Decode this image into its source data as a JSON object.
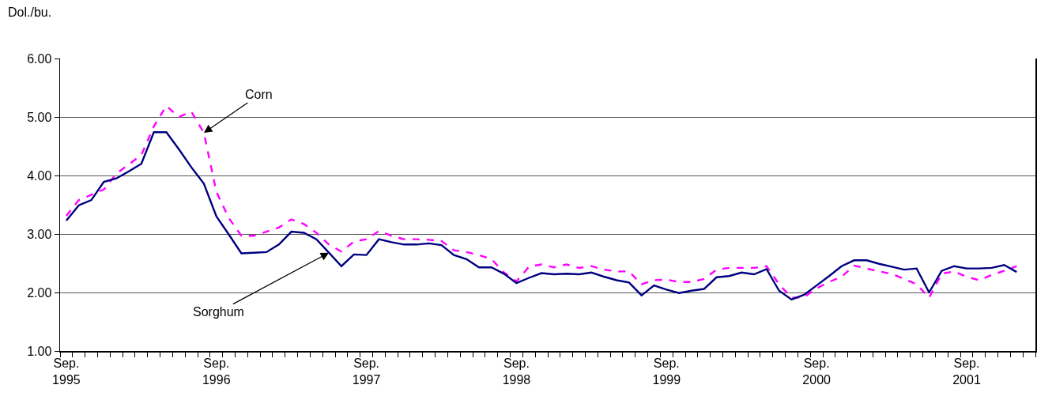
{
  "chart_data": {
    "type": "line",
    "ylabel": "Dol./bu.",
    "categories": [
      "Sep.\n1995",
      null,
      null,
      null,
      null,
      null,
      null,
      null,
      null,
      null,
      null,
      null,
      "Sep.\n1996",
      null,
      null,
      null,
      null,
      null,
      null,
      null,
      null,
      null,
      null,
      null,
      "Sep.\n1997",
      null,
      null,
      null,
      null,
      null,
      null,
      null,
      null,
      null,
      null,
      null,
      "Sep.\n1998",
      null,
      null,
      null,
      null,
      null,
      null,
      null,
      null,
      null,
      null,
      null,
      "Sep.\n1999",
      null,
      null,
      null,
      null,
      null,
      null,
      null,
      null,
      null,
      null,
      null,
      "Sep.\n2000",
      null,
      null,
      null,
      null,
      null,
      null,
      null,
      null,
      null,
      null,
      null,
      "Sep.\n2001",
      null,
      null,
      null,
      null,
      null
    ],
    "series": [
      {
        "name": "Corn",
        "color": "#ff00ff",
        "line_style": "dashed",
        "values": [
          3.31,
          3.58,
          3.67,
          3.76,
          4.03,
          4.19,
          4.35,
          4.84,
          5.19,
          5.0,
          5.09,
          4.73,
          3.72,
          3.27,
          2.97,
          2.97,
          3.04,
          3.11,
          3.25,
          3.17,
          3.02,
          2.82,
          2.7,
          2.87,
          2.91,
          3.05,
          2.97,
          2.91,
          2.91,
          2.9,
          2.88,
          2.72,
          2.69,
          2.64,
          2.57,
          2.34,
          2.19,
          2.44,
          2.48,
          2.43,
          2.48,
          2.42,
          2.45,
          2.39,
          2.36,
          2.36,
          2.14,
          2.21,
          2.22,
          2.18,
          2.18,
          2.23,
          2.39,
          2.42,
          2.42,
          2.42,
          2.45,
          2.14,
          1.91,
          1.92,
          2.07,
          2.18,
          2.27,
          2.46,
          2.41,
          2.36,
          2.32,
          2.23,
          2.14,
          1.91,
          2.32,
          2.36,
          2.27,
          2.21,
          2.3,
          2.37,
          2.45,
          null
        ]
      },
      {
        "name": "Sorghum",
        "color": "#000080",
        "line_style": "solid",
        "values": [
          3.23,
          3.49,
          3.58,
          3.89,
          3.95,
          4.07,
          4.2,
          4.74,
          4.74,
          4.45,
          4.14,
          3.86,
          3.3,
          2.99,
          2.67,
          2.68,
          2.69,
          2.82,
          3.04,
          3.02,
          2.91,
          2.68,
          2.45,
          2.65,
          2.64,
          2.91,
          2.86,
          2.82,
          2.82,
          2.84,
          2.81,
          2.64,
          2.57,
          2.43,
          2.43,
          2.32,
          2.16,
          2.25,
          2.33,
          2.31,
          2.32,
          2.31,
          2.34,
          2.27,
          2.21,
          2.17,
          1.95,
          2.12,
          2.05,
          1.99,
          2.03,
          2.06,
          2.26,
          2.28,
          2.34,
          2.31,
          2.4,
          2.03,
          1.88,
          1.96,
          2.12,
          2.28,
          2.45,
          2.55,
          2.55,
          2.49,
          2.44,
          2.39,
          2.41,
          2.0,
          2.37,
          2.45,
          2.41,
          2.41,
          2.42,
          2.47,
          2.35,
          null
        ]
      }
    ],
    "ylim": [
      1,
      6
    ],
    "yticks": [
      {
        "value": 1,
        "label": "1.00"
      },
      {
        "value": 2,
        "label": "2.00"
      },
      {
        "value": 3,
        "label": "3.00"
      },
      {
        "value": 4,
        "label": "4.00"
      },
      {
        "value": 5,
        "label": "5.00"
      },
      {
        "value": 6,
        "label": "6.00"
      }
    ],
    "grid": "y",
    "legend": false,
    "marker": "none"
  }
}
